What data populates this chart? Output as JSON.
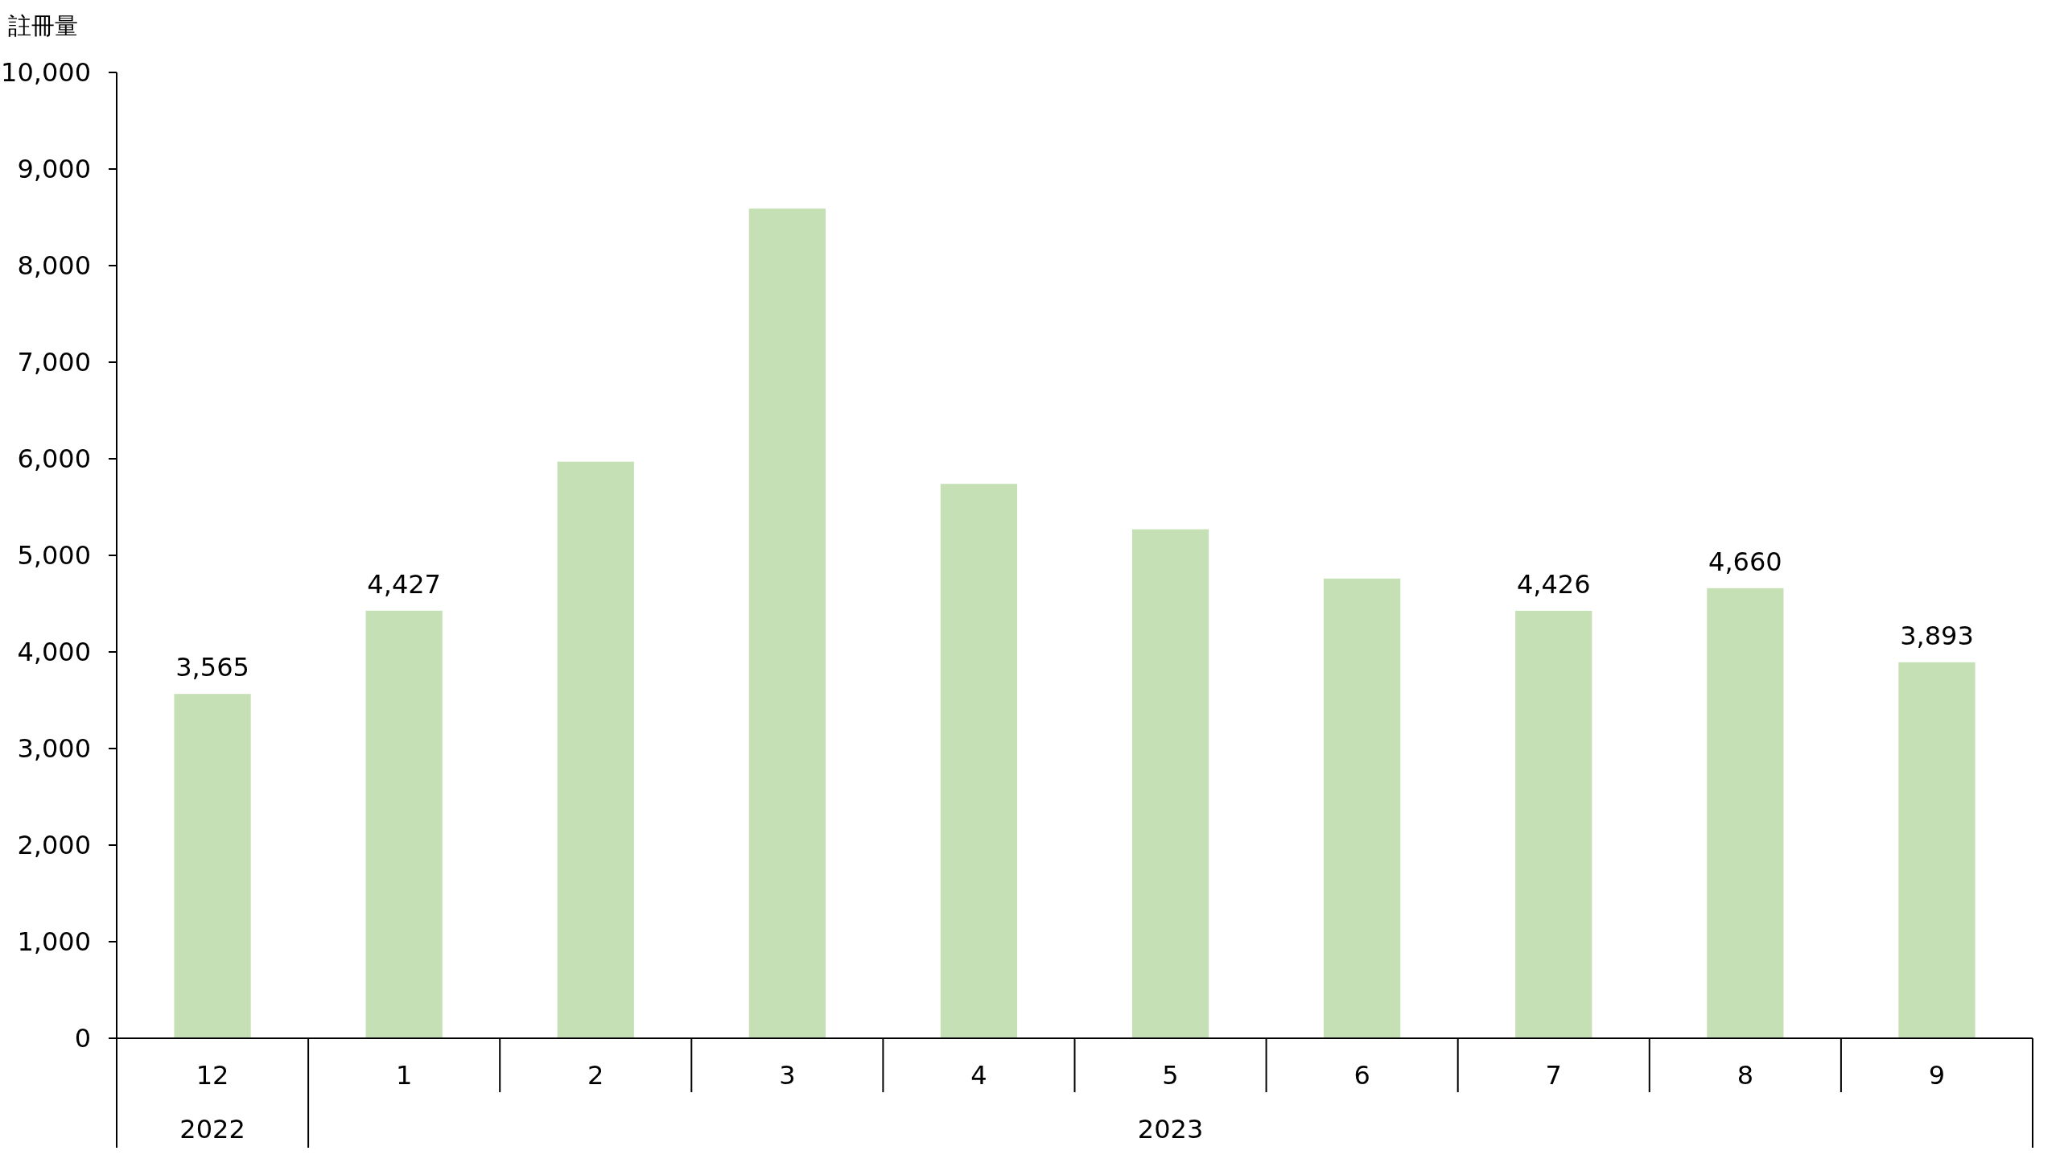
{
  "chart_data": {
    "type": "bar",
    "ylabel": "註冊量",
    "categories": [
      "12",
      "1",
      "2",
      "3",
      "4",
      "5",
      "6",
      "7",
      "8",
      "9"
    ],
    "values": [
      3565,
      4427,
      5970,
      8590,
      5740,
      5270,
      4760,
      4426,
      4660,
      3893
    ],
    "value_labels": [
      "3,565",
      "4,427",
      null,
      null,
      null,
      null,
      null,
      "4,426",
      "4,660",
      "3,893"
    ],
    "color": "#c5e0b4",
    "ylim": [
      0,
      10000
    ],
    "yticks": [
      {
        "value": 0,
        "label": "0"
      },
      {
        "value": 1000,
        "label": "1,000"
      },
      {
        "value": 2000,
        "label": "2,000"
      },
      {
        "value": 3000,
        "label": "3,000"
      },
      {
        "value": 4000,
        "label": "4,000"
      },
      {
        "value": 5000,
        "label": "5,000"
      },
      {
        "value": 6000,
        "label": "6,000"
      },
      {
        "value": 7000,
        "label": "7,000"
      },
      {
        "value": 8000,
        "label": "8,000"
      },
      {
        "value": 9000,
        "label": "9,000"
      },
      {
        "value": 10000,
        "label": "10,000"
      }
    ],
    "annotations": [
      "2022",
      "2023"
    ]
  }
}
